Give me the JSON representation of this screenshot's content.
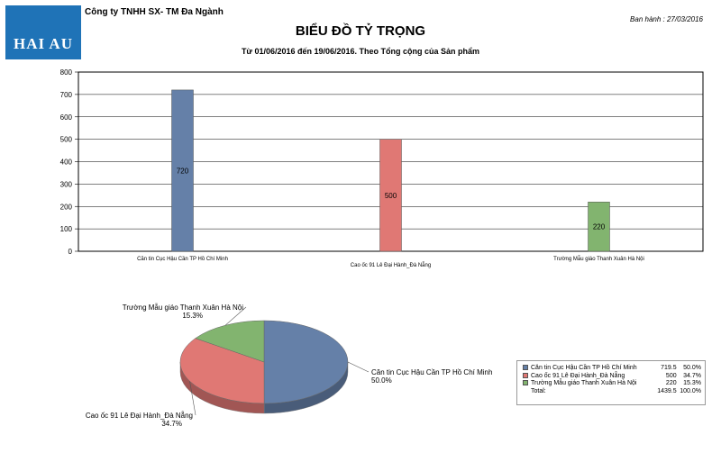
{
  "header": {
    "logo_text": "HAI AU",
    "company": "Công ty TNHH SX- TM Đa Ngành",
    "print_date": "Ban hành : 27/03/2016",
    "title": "BIỂU ĐỒ TỶ TRỌNG",
    "subtitle": "Từ 01/06/2016 đến 19/06/2016.  Theo Tổng cộng của Sản phẩm"
  },
  "colors": {
    "blue": "#6580a8",
    "red": "#e07874",
    "green": "#82b46f"
  },
  "chart_data": [
    {
      "type": "bar",
      "categories": [
        "Căn tin Cục Hậu Cần TP Hồ Chí Minh",
        "Cao ốc 91 Lê Đại Hành_Đà Nẵng",
        "Trường Mẫu giáo Thanh Xuân Hà Nội"
      ],
      "values": [
        720,
        500,
        220
      ],
      "data_labels": [
        "720",
        "500",
        "220"
      ],
      "ylim": [
        0,
        800
      ],
      "yticks": [
        0,
        100,
        200,
        300,
        400,
        500,
        600,
        700,
        800
      ],
      "grid": true
    },
    {
      "type": "pie",
      "labels": [
        "Căn tin Cục Hậu Cần TP Hồ Chí Minh",
        "Cao ốc 91 Lê Đại Hành_Đà Nẵng",
        "Trường Mẫu giáo Thanh Xuân Hà Nội"
      ],
      "values": [
        719.5,
        500,
        220
      ],
      "percent_labels": [
        "50.0%",
        "34.7%",
        "15.3%"
      ],
      "legend": {
        "position": "bottom-right",
        "rows": [
          {
            "name": "Căn tin Cục Hậu Cần TP Hồ Chí Minh",
            "value": "719.5",
            "pct": "50.0%"
          },
          {
            "name": "Cao ốc 91 Lê Đại Hành_Đà Nẵng",
            "value": "500",
            "pct": "34.7%"
          },
          {
            "name": "Trường Mẫu giáo Thanh Xuân Hà Nội",
            "value": "220",
            "pct": "15.3%"
          }
        ],
        "total_label": "Total:",
        "total_value": "1439.5",
        "total_pct": "100.0%"
      }
    }
  ]
}
